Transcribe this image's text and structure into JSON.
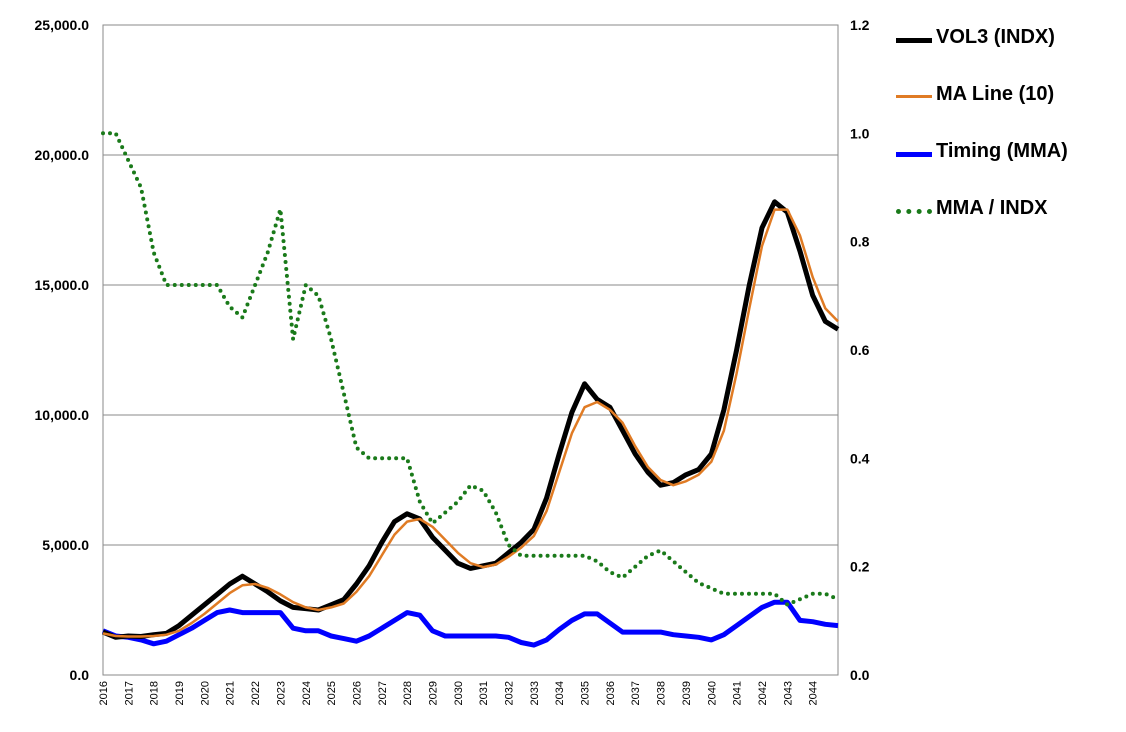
{
  "chart_data": {
    "type": "line",
    "title": "",
    "xlabel": "",
    "ylabel": "",
    "ylim": [
      0,
      25000
    ],
    "y2lim": [
      0,
      1.2
    ],
    "y_ticks": [
      "0.0",
      "5,000.0",
      "10,000.0",
      "15,000.0",
      "20,000.0",
      "25,000.0"
    ],
    "y2_ticks": [
      "0.0",
      "0.2",
      "0.4",
      "0.6",
      "0.8",
      "1.0",
      "1.2"
    ],
    "x_ticks": [
      "2016",
      "2017",
      "2018",
      "2019",
      "2020",
      "2021",
      "2022",
      "2023",
      "2024",
      "2025",
      "2026",
      "2027",
      "2028",
      "2029",
      "2030",
      "2031",
      "2032",
      "2033",
      "2034",
      "2035",
      "2036",
      "2037",
      "2038",
      "2039",
      "2040",
      "2041",
      "2042",
      "2043",
      "2044"
    ],
    "x_years": [
      2016.0,
      2016.5,
      2017.0,
      2017.5,
      2018.0,
      2018.5,
      2019.0,
      2019.5,
      2020.0,
      2020.5,
      2021.0,
      2021.5,
      2022.0,
      2022.5,
      2023.0,
      2023.5,
      2024.0,
      2024.5,
      2025.0,
      2025.5,
      2026.0,
      2026.5,
      2027.0,
      2027.5,
      2028.0,
      2028.5,
      2029.0,
      2029.5,
      2030.0,
      2030.5,
      2031.0,
      2031.5,
      2032.0,
      2032.5,
      2033.0,
      2033.5,
      2034.0,
      2034.5,
      2035.0,
      2035.5,
      2036.0,
      2036.5,
      2037.0,
      2037.5,
      2038.0,
      2038.5,
      2039.0,
      2039.5,
      2040.0,
      2040.5,
      2041.0,
      2041.5,
      2042.0,
      2042.5,
      2043.0,
      2043.5,
      2044.0,
      2044.5,
      2045.0
    ],
    "legend_position": "right",
    "grid": true,
    "series": [
      {
        "name": "VOL3 (INDX)",
        "axis": "left",
        "color": "#000000",
        "style": "solid-thick",
        "values": [
          1650,
          1450,
          1500,
          1480,
          1550,
          1600,
          1900,
          2300,
          2700,
          3100,
          3500,
          3800,
          3500,
          3200,
          2850,
          2600,
          2550,
          2500,
          2700,
          2900,
          3500,
          4200,
          5100,
          5900,
          6200,
          6000,
          5300,
          4800,
          4300,
          4100,
          4200,
          4300,
          4700,
          5100,
          5600,
          6800,
          8500,
          10100,
          11200,
          10600,
          10300,
          9400,
          8500,
          7800,
          7300,
          7400,
          7700,
          7900,
          8500,
          10200,
          12500,
          15000,
          17200,
          18200,
          17800,
          16300,
          14600,
          13600,
          13300
        ]
      },
      {
        "name": "MA Line (10)",
        "axis": "left",
        "color": "#e07b24",
        "style": "solid",
        "values": [
          1600,
          1500,
          1480,
          1480,
          1500,
          1550,
          1700,
          2000,
          2350,
          2750,
          3150,
          3450,
          3500,
          3350,
          3100,
          2800,
          2600,
          2500,
          2600,
          2750,
          3200,
          3800,
          4600,
          5400,
          5900,
          6000,
          5700,
          5200,
          4700,
          4300,
          4150,
          4250,
          4550,
          4900,
          5350,
          6300,
          7800,
          9300,
          10300,
          10500,
          10200,
          9700,
          8800,
          8000,
          7500,
          7300,
          7450,
          7700,
          8200,
          9400,
          11600,
          14100,
          16500,
          17900,
          17900,
          16900,
          15300,
          14100,
          13600
        ]
      },
      {
        "name": "Timing (MMA)",
        "axis": "left",
        "color": "#0000ff",
        "style": "solid-thick",
        "values": [
          1700,
          1500,
          1450,
          1350,
          1200,
          1300,
          1550,
          1800,
          2100,
          2400,
          2500,
          2400,
          2400,
          2400,
          2400,
          1800,
          1700,
          1700,
          1500,
          1400,
          1300,
          1500,
          1800,
          2100,
          2400,
          2300,
          1700,
          1500,
          1500,
          1500,
          1500,
          1500,
          1450,
          1250,
          1150,
          1350,
          1750,
          2100,
          2350,
          2350,
          2000,
          1650,
          1650,
          1650,
          1650,
          1550,
          1500,
          1450,
          1350,
          1550,
          1900,
          2250,
          2600,
          2800,
          2800,
          2100,
          2050,
          1950,
          1900
        ]
      },
      {
        "name": "MMA / INDX",
        "axis": "right",
        "color": "#1a7a1a",
        "style": "dotted",
        "values": [
          1.0,
          1.0,
          0.95,
          0.9,
          0.78,
          0.72,
          0.72,
          0.72,
          0.72,
          0.72,
          0.68,
          0.66,
          0.72,
          0.78,
          0.86,
          0.62,
          0.72,
          0.7,
          0.62,
          0.52,
          0.42,
          0.4,
          0.4,
          0.4,
          0.4,
          0.32,
          0.28,
          0.3,
          0.32,
          0.35,
          0.34,
          0.3,
          0.24,
          0.22,
          0.22,
          0.22,
          0.22,
          0.22,
          0.22,
          0.21,
          0.19,
          0.18,
          0.2,
          0.22,
          0.23,
          0.21,
          0.19,
          0.17,
          0.16,
          0.15,
          0.15,
          0.15,
          0.15,
          0.15,
          0.13,
          0.14,
          0.15,
          0.15,
          0.14
        ]
      }
    ]
  }
}
